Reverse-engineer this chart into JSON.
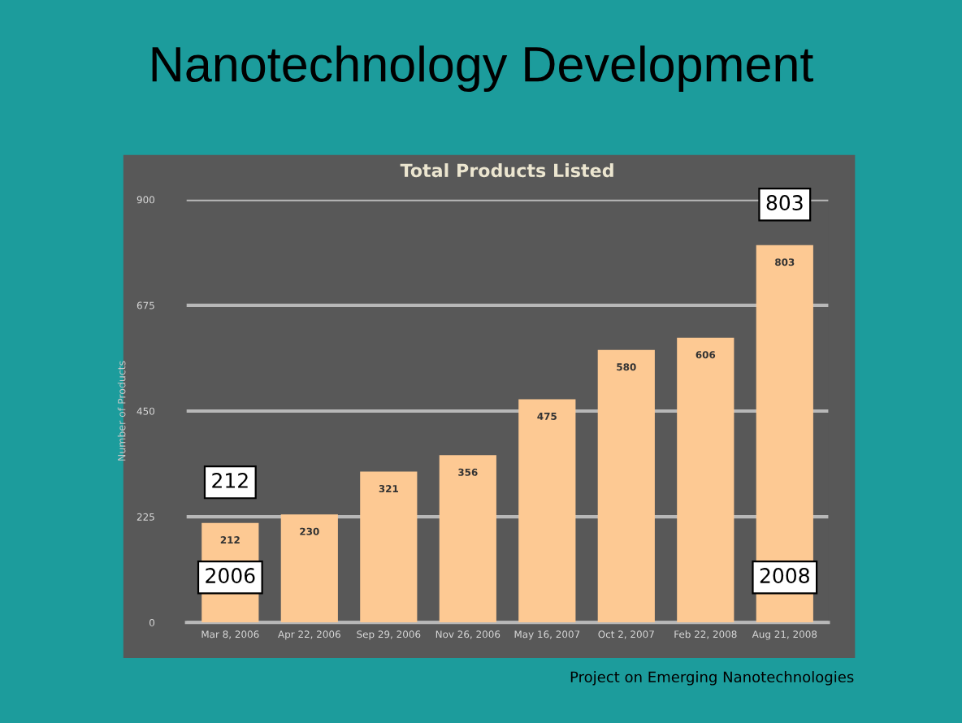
{
  "chart_data": {
    "type": "bar",
    "title": "Nanotechnology Development",
    "subtitle": "Total Products Listed",
    "ylabel": "Number of Products",
    "categories": [
      "Mar 8, 2006",
      "Apr 22, 2006",
      "Sep 29, 2006",
      "Nov 26, 2006",
      "May 16, 2007",
      "Oct 2, 2007",
      "Feb 22, 2008",
      "Aug 21, 2008"
    ],
    "values": [
      212,
      230,
      321,
      356,
      475,
      580,
      606,
      803
    ],
    "color": "#fdc993",
    "ylim": [
      0,
      900
    ],
    "yticks": [
      0,
      225,
      450,
      675,
      900
    ],
    "grid": "y",
    "data_labels": true,
    "legend": false,
    "annotations": [
      {
        "text": "212",
        "x": "Mar 8, 2006",
        "y": 212
      },
      {
        "text": "2006",
        "x": "Mar 8, 2006"
      },
      {
        "text": "803",
        "x": "Aug 21, 2008",
        "y": 803
      },
      {
        "text": "2008",
        "x": "Aug 21, 2008"
      },
      "Project on Emerging Nanotechnologies"
    ]
  }
}
